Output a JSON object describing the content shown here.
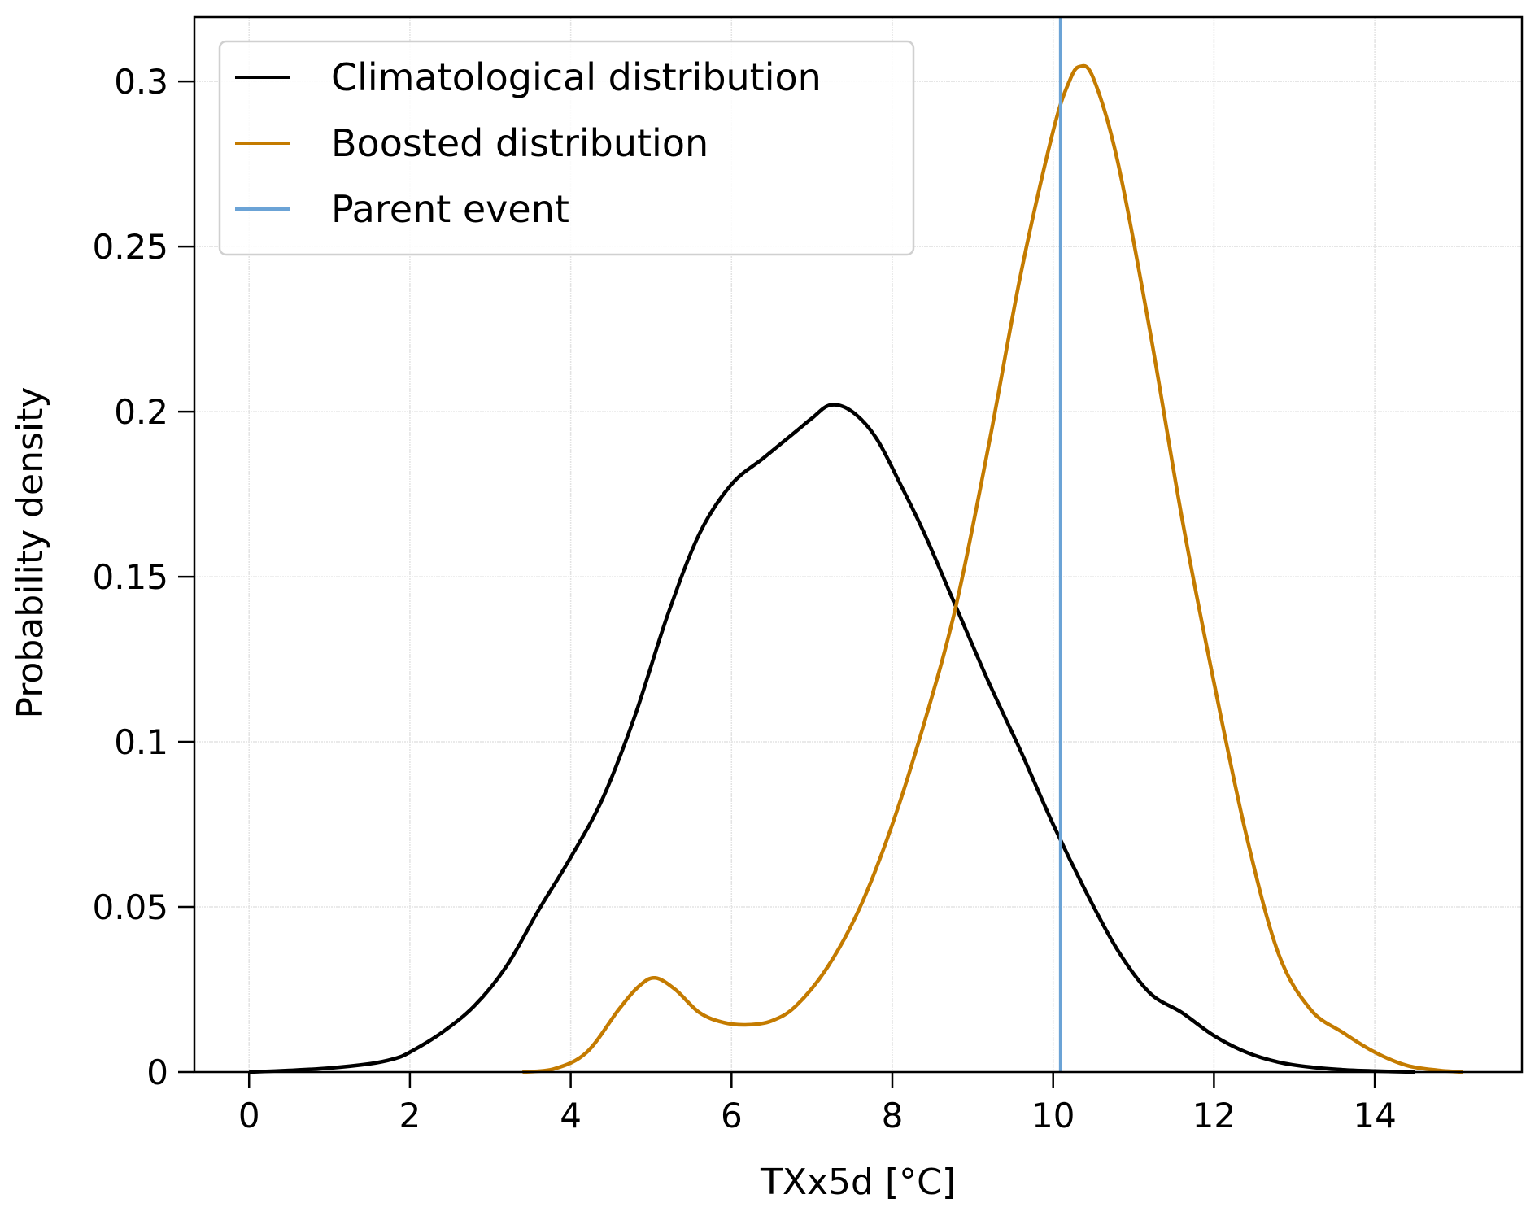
{
  "chart_data": {
    "type": "line",
    "title": "",
    "xlabel": "TXx5d [°C]",
    "ylabel": "Probability density",
    "xlim": [
      -0.68,
      15.83
    ],
    "ylim": [
      0,
      0.3195
    ],
    "grid": true,
    "legend_position": "top-left",
    "xticks": [
      0,
      2,
      4,
      6,
      8,
      10,
      12,
      14
    ],
    "xtick_labels": [
      "0",
      "2",
      "4",
      "6",
      "8",
      "10",
      "12",
      "14"
    ],
    "yticks": [
      0,
      0.05,
      0.1,
      0.15,
      0.2,
      0.25,
      0.3
    ],
    "ytick_labels": [
      "0",
      "0.05",
      "0.1",
      "0.15",
      "0.2",
      "0.25",
      "0.3"
    ],
    "series": [
      {
        "name": "Climatological distribution",
        "color": "#000000",
        "x": [
          0,
          0.5,
          1,
          1.5,
          1.8,
          2,
          2.4,
          2.8,
          3.2,
          3.6,
          4,
          4.4,
          4.8,
          5.2,
          5.6,
          6,
          6.4,
          6.8,
          7.0,
          7.23,
          7.5,
          7.8,
          8.1,
          8.4,
          8.79,
          9.2,
          9.6,
          10,
          10.4,
          10.8,
          11.2,
          11.6,
          12,
          12.4,
          12.8,
          13.2,
          13.6,
          14,
          14.5
        ],
        "y": [
          0.0,
          0.0005,
          0.0012,
          0.0025,
          0.004,
          0.006,
          0.012,
          0.02,
          0.032,
          0.049,
          0.065,
          0.083,
          0.108,
          0.138,
          0.163,
          0.178,
          0.186,
          0.194,
          0.198,
          0.202,
          0.2,
          0.192,
          0.178,
          0.163,
          0.141,
          0.118,
          0.097,
          0.075,
          0.055,
          0.037,
          0.024,
          0.018,
          0.011,
          0.006,
          0.003,
          0.0015,
          0.0007,
          0.0003,
          0.0
        ]
      },
      {
        "name": "Boosted distribution",
        "color": "#c47b00",
        "x": [
          3.4,
          3.8,
          4.2,
          4.6,
          4.85,
          5.05,
          5.3,
          5.6,
          5.9,
          6.2,
          6.5,
          6.8,
          7.2,
          7.6,
          8.0,
          8.4,
          8.79,
          9.2,
          9.6,
          10.0,
          10.2,
          10.33,
          10.5,
          10.8,
          11.2,
          11.6,
          12.0,
          12.4,
          12.8,
          13.2,
          13.6,
          14.0,
          14.4,
          14.8,
          15.1
        ],
        "y": [
          0.0,
          0.001,
          0.006,
          0.019,
          0.026,
          0.0285,
          0.025,
          0.018,
          0.015,
          0.0143,
          0.0155,
          0.02,
          0.032,
          0.05,
          0.075,
          0.106,
          0.141,
          0.19,
          0.242,
          0.285,
          0.3,
          0.3045,
          0.301,
          0.276,
          0.225,
          0.168,
          0.118,
          0.072,
          0.036,
          0.019,
          0.012,
          0.006,
          0.002,
          0.0005,
          0.0
        ]
      }
    ],
    "vlines": [
      {
        "name": "Parent event",
        "x": 10.09,
        "color": "#6ba3d6"
      }
    ],
    "legend": [
      {
        "label": "Climatological distribution",
        "color": "#000000"
      },
      {
        "label": "Boosted distribution",
        "color": "#c47b00"
      },
      {
        "label": "Parent event",
        "color": "#6ba3d6"
      }
    ]
  }
}
